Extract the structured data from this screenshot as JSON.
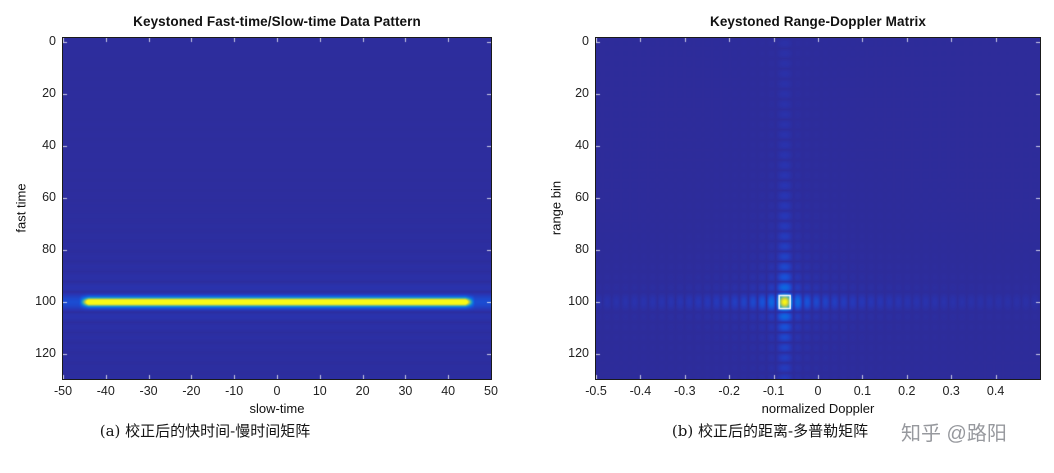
{
  "figure": {
    "background": "#ffffff",
    "axis_color": "#1a1a1a",
    "tick_color": "rgba(255,255,255,0.75)",
    "label_color": "#111111",
    "watermark_color": "#97999e"
  },
  "watermark": "知乎 @路阳",
  "colormap_stops": [
    [
      0.0,
      [
        49,
        38,
        138
      ]
    ],
    [
      0.12,
      [
        40,
        53,
        180
      ]
    ],
    [
      0.25,
      [
        25,
        80,
        215
      ]
    ],
    [
      0.38,
      [
        12,
        108,
        225
      ]
    ],
    [
      0.5,
      [
        25,
        140,
        205
      ]
    ],
    [
      0.62,
      [
        60,
        170,
        175
      ]
    ],
    [
      0.75,
      [
        130,
        192,
        120
      ]
    ],
    [
      0.87,
      [
        205,
        205,
        60
      ]
    ],
    [
      1.0,
      [
        249,
        250,
        20
      ]
    ]
  ],
  "chart_data": [
    {
      "type": "heatmap",
      "title": "Keystoned Fast-time/Slow-time Data Pattern",
      "xlabel": "slow-time",
      "ylabel": "fast time",
      "caption": "(a) 校正后的快时间-慢时间矩阵",
      "xlim": [
        -50,
        50
      ],
      "ylim": [
        0,
        125
      ],
      "xticks": [
        -50,
        -40,
        -30,
        -20,
        -10,
        0,
        10,
        20,
        30,
        40,
        50
      ],
      "yticks": [
        0,
        20,
        40,
        60,
        80,
        100,
        120
      ],
      "colormap": "parula",
      "grid": false,
      "content": {
        "description": "Dark-blue fast-time/slow-time magnitude map after keystone correction: one bright yellow horizontal target line at fast-time bin 100 spanning slow-time -45 to 45, with faint horizontal sinc sidelobe stripes across the full width",
        "target_row": 100,
        "target_x_extent": [
          -45,
          45
        ],
        "sidelobe_period_rows": 3.9
      }
    },
    {
      "type": "heatmap",
      "title": "Keystoned Range-Doppler Matrix",
      "xlabel": "normalized Doppler",
      "ylabel": "range bin",
      "caption": "(b) 校正后的距离-多普勒矩阵",
      "xlim": [
        -0.5,
        0.5
      ],
      "ylim": [
        0,
        125
      ],
      "xticks": [
        -0.5,
        -0.4,
        -0.3,
        -0.2,
        -0.1,
        0,
        0.1,
        0.2,
        0.3,
        0.4
      ],
      "yticks": [
        0,
        20,
        40,
        60,
        80,
        100,
        120
      ],
      "colormap": "parula",
      "grid": false,
      "content": {
        "description": "Range-Doppler map: single focused target peak at normalized Doppler -0.075 and range bin 100, cross-shaped dotted sinc sidelobes along the Doppler and range axes, white marker box around the peak",
        "peak": {
          "x": -0.075,
          "y": 100
        },
        "doppler_sidelobe_period": 0.0205,
        "range_sidelobe_period_rows": 3.9,
        "peak_marker": "white-box"
      }
    }
  ]
}
